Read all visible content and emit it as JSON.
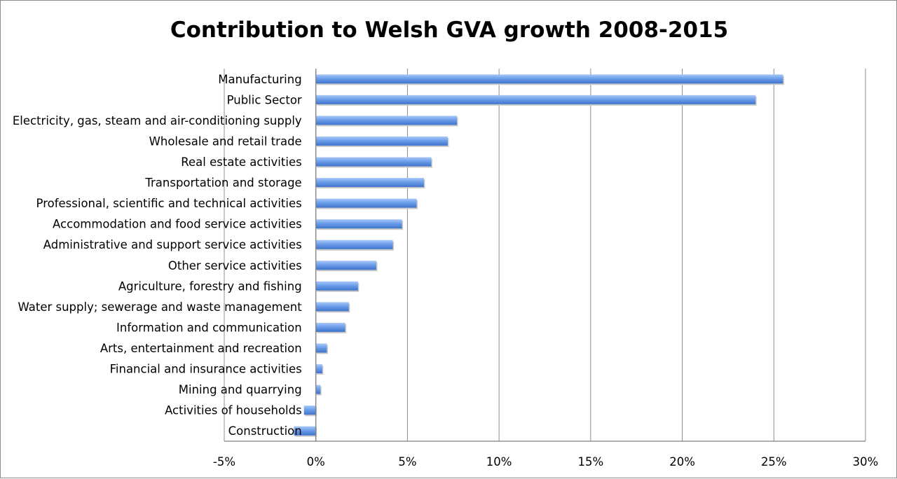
{
  "chart_data": {
    "type": "bar",
    "orientation": "horizontal",
    "title": "Contribution to Welsh GVA growth 2008-2015",
    "xlabel": "",
    "ylabel": "",
    "xlim": [
      -5,
      30
    ],
    "x_ticks": [
      -5,
      0,
      5,
      10,
      15,
      20,
      25,
      30
    ],
    "x_tick_labels": [
      "-5%",
      "0%",
      "5%",
      "10%",
      "15%",
      "20%",
      "25%",
      "30%"
    ],
    "grid": "vertical",
    "legend": "none",
    "bar_color": "#6d9eeb",
    "categories": [
      "Manufacturing",
      "Public Sector",
      "Electricity, gas, steam and air-conditioning supply",
      "Wholesale and retail trade",
      "Real estate activities",
      "Transportation and storage",
      "Professional, scientific and technical activities",
      "Accommodation and food service activities",
      "Administrative and support service activities",
      "Other service activities",
      "Agriculture, forestry and fishing",
      "Water supply; sewerage and waste management",
      "Information and communication",
      "Arts, entertainment and recreation",
      "Financial and insurance activities",
      "Mining and quarrying",
      "Activities of households",
      "Construction"
    ],
    "values": [
      25.5,
      24.0,
      7.7,
      7.2,
      6.3,
      5.9,
      5.5,
      4.7,
      4.2,
      3.3,
      2.3,
      1.8,
      1.6,
      0.6,
      0.35,
      0.25,
      -0.65,
      -1.2
    ]
  }
}
